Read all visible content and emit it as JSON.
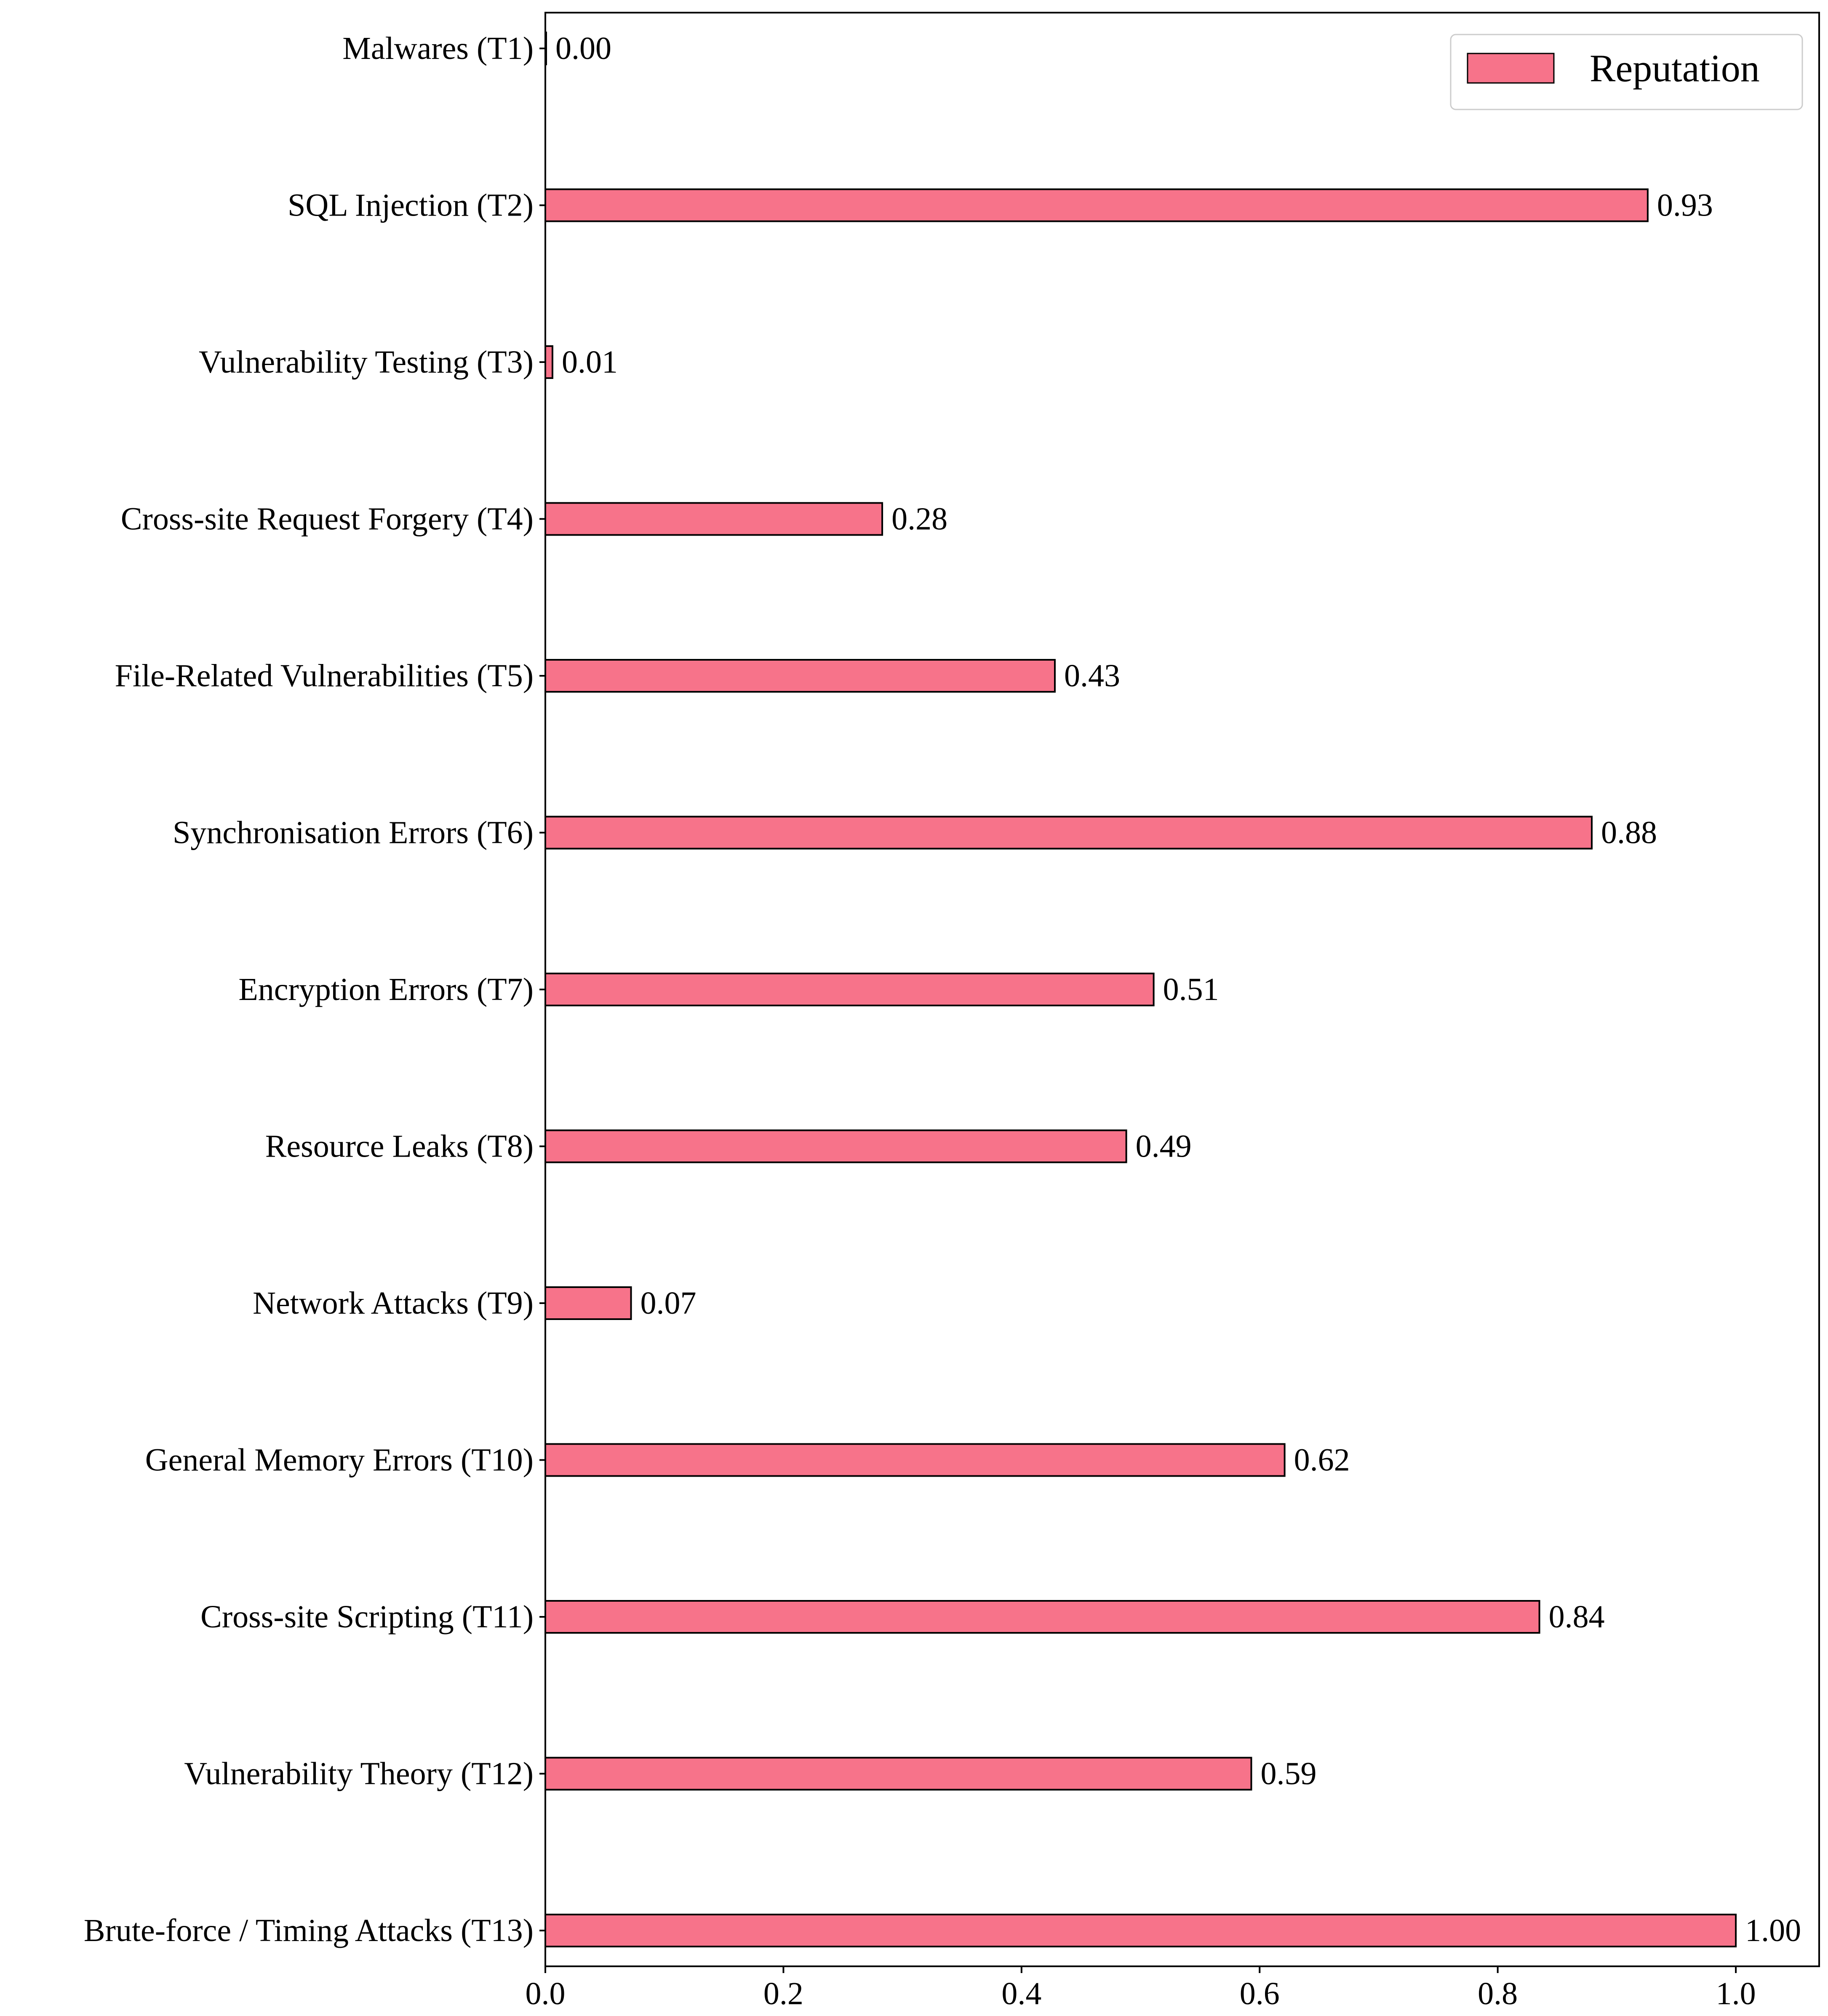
{
  "chart_data": {
    "type": "bar",
    "orientation": "horizontal",
    "categories": [
      "Malwares (T1)",
      "SQL Injection (T2)",
      "Vulnerability Testing (T3)",
      "Cross-site Request Forgery (T4)",
      "File-Related Vulnerabilities (T5)",
      "Synchronisation Errors (T6)",
      "Encryption Errors (T7)",
      "Resource Leaks (T8)",
      "Network Attacks (T9)",
      "General Memory Errors (T10)",
      "Cross-site Scripting (T11)",
      "Vulnerability Theory (T12)",
      "Brute-force / Timing Attacks (T13)"
    ],
    "series": [
      {
        "name": "Reputation",
        "color": "#f7738a",
        "values": [
          0.0,
          0.926,
          0.006,
          0.283,
          0.428,
          0.879,
          0.511,
          0.488,
          0.072,
          0.621,
          0.835,
          0.593,
          1.0
        ]
      }
    ],
    "data_labels": [
      "0.00",
      "0.93",
      "0.01",
      "0.28",
      "0.43",
      "0.88",
      "0.51",
      "0.49",
      "0.07",
      "0.62",
      "0.84",
      "0.59",
      "1.00"
    ],
    "xlim": [
      0.0,
      1.07
    ],
    "xticks": [
      0.0,
      0.2,
      0.4,
      0.6,
      0.8,
      1.0
    ],
    "xtick_labels": [
      "0.0",
      "0.2",
      "0.4",
      "0.6",
      "0.8",
      "1.0"
    ],
    "title": "",
    "xlabel": "",
    "ylabel": "",
    "grid": false,
    "legend_position": "top-right",
    "bar_edge_color": "#000000"
  }
}
